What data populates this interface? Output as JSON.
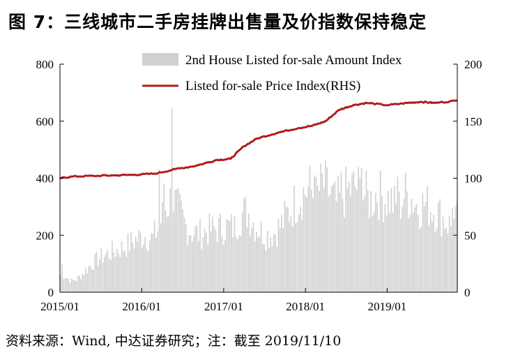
{
  "title": "图 7：三线城市二手房挂牌出售量及价指数保持稳定",
  "source_note": "资料来源：Wind, 中达证券研究；注：截至 2019/11/10",
  "colors": {
    "bars": "#d0d0d2",
    "line": "#b01c1c",
    "axis": "#000000"
  },
  "chart_data": {
    "type": "bar+line",
    "x_ticks": [
      "2015/01",
      "2016/01",
      "2017/01",
      "2018/01",
      "2019/01"
    ],
    "x_range": [
      "2015-01-01",
      "2019-11-10"
    ],
    "y_left": {
      "ticks": [
        0,
        200,
        400,
        600,
        800
      ],
      "range": [
        0,
        800
      ]
    },
    "y_right": {
      "ticks": [
        0,
        50,
        100,
        150,
        200
      ],
      "range": [
        0,
        200
      ]
    },
    "legend_position": "top-right",
    "series": [
      {
        "name": "2nd House Listed for-sale Amount Index",
        "type": "bar",
        "axis": "left",
        "points": [
          [
            "2015-01",
            60
          ],
          [
            "2015-02",
            40
          ],
          [
            "2015-03",
            45
          ],
          [
            "2015-04",
            70
          ],
          [
            "2015-05",
            95
          ],
          [
            "2015-06",
            115
          ],
          [
            "2015-07",
            130
          ],
          [
            "2015-08",
            140
          ],
          [
            "2015-09",
            150
          ],
          [
            "2015-10",
            160
          ],
          [
            "2015-11",
            175
          ],
          [
            "2015-12",
            190
          ],
          [
            "2016-01",
            200
          ],
          [
            "2016-02",
            185
          ],
          [
            "2016-03",
            230
          ],
          [
            "2016-04",
            300
          ],
          [
            "2016-05",
            330
          ],
          [
            "2016-06",
            280
          ],
          [
            "2016-07",
            230
          ],
          [
            "2016-08",
            210
          ],
          [
            "2016-09",
            205
          ],
          [
            "2016-10",
            215
          ],
          [
            "2016-11",
            220
          ],
          [
            "2016-12",
            225
          ],
          [
            "2017-01",
            230
          ],
          [
            "2017-02",
            225
          ],
          [
            "2017-03",
            270
          ],
          [
            "2017-04",
            285
          ],
          [
            "2017-05",
            240
          ],
          [
            "2017-06",
            215
          ],
          [
            "2017-07",
            200
          ],
          [
            "2017-08",
            210
          ],
          [
            "2017-09",
            240
          ],
          [
            "2017-10",
            280
          ],
          [
            "2017-11",
            315
          ],
          [
            "2017-12",
            345
          ],
          [
            "2018-01",
            365
          ],
          [
            "2018-02",
            330
          ],
          [
            "2018-03",
            380
          ],
          [
            "2018-04",
            350
          ],
          [
            "2018-05",
            310
          ],
          [
            "2018-06",
            340
          ],
          [
            "2018-07",
            360
          ],
          [
            "2018-08",
            370
          ],
          [
            "2018-09",
            345
          ],
          [
            "2018-10",
            320
          ],
          [
            "2018-11",
            350
          ],
          [
            "2018-12",
            330
          ],
          [
            "2019-01",
            325
          ],
          [
            "2019-02",
            285
          ],
          [
            "2019-03",
            345
          ],
          [
            "2019-04",
            335
          ],
          [
            "2019-05",
            300
          ],
          [
            "2019-06",
            310
          ],
          [
            "2019-07",
            295
          ],
          [
            "2019-08",
            280
          ],
          [
            "2019-09",
            250
          ],
          [
            "2019-10",
            230
          ],
          [
            "2019-11",
            265
          ]
        ],
        "peaks": [
          [
            "2015-01-05",
            100
          ],
          [
            "2016-04-10",
            380
          ],
          [
            "2016-05-10",
            645
          ],
          [
            "2016-03-20",
            430
          ],
          [
            "2018-02-05",
            410
          ],
          [
            "2018-06-10",
            420
          ],
          [
            "2018-09-05",
            435
          ],
          [
            "2019-02-15",
            405
          ],
          [
            "2019-10-20",
            295
          ]
        ]
      },
      {
        "name": "Listed for-sale Price Index(RHS)",
        "type": "line",
        "axis": "right",
        "points": [
          [
            "2015-01-01",
            100.0
          ],
          [
            "2015-03-01",
            101.5
          ],
          [
            "2015-06-01",
            102.0
          ],
          [
            "2015-09-01",
            102.5
          ],
          [
            "2015-12-01",
            103.0
          ],
          [
            "2016-03-01",
            104.0
          ],
          [
            "2016-06-01",
            108.0
          ],
          [
            "2016-09-01",
            111.0
          ],
          [
            "2016-12-01",
            116.0
          ],
          [
            "2017-02-01",
            117.0
          ],
          [
            "2017-04-01",
            128.0
          ],
          [
            "2017-06-01",
            135.0
          ],
          [
            "2017-09-01",
            140.0
          ],
          [
            "2017-12-01",
            144.0
          ],
          [
            "2018-02-01",
            146.0
          ],
          [
            "2018-04-01",
            150.0
          ],
          [
            "2018-06-01",
            160.0
          ],
          [
            "2018-08-01",
            164.0
          ],
          [
            "2018-10-01",
            166.0
          ],
          [
            "2019-01-01",
            164.0
          ],
          [
            "2019-04-01",
            166.0
          ],
          [
            "2019-06-01",
            167.0
          ],
          [
            "2019-08-01",
            166.0
          ],
          [
            "2019-11-10",
            168.0
          ]
        ]
      }
    ]
  }
}
